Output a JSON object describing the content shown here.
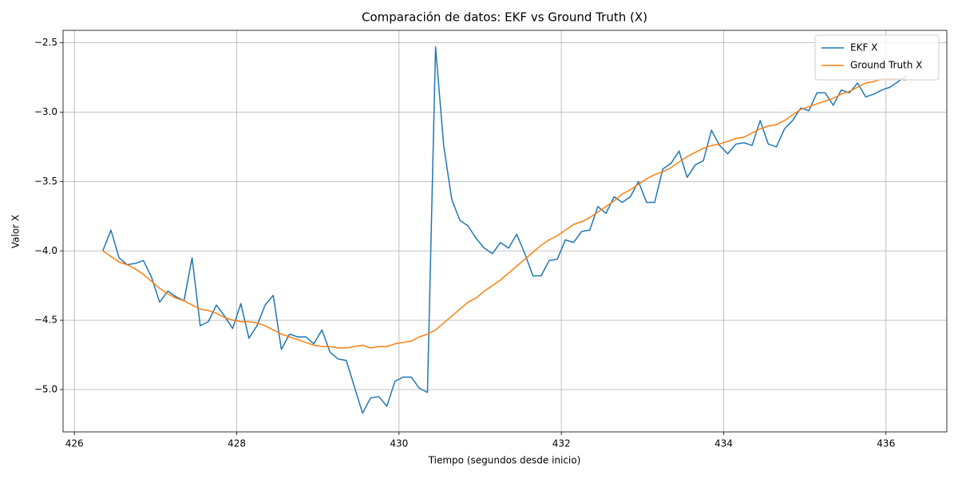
{
  "chart_data": {
    "type": "line",
    "title": "Comparación de datos: EKF vs Ground Truth (X)",
    "x_label": "Tiempo (segundos desde inicio)",
    "y_label": "Valor X",
    "x": [
      426.35,
      426.45,
      426.55,
      426.65,
      426.75,
      426.85,
      426.95,
      427.05,
      427.15,
      427.25,
      427.35,
      427.45,
      427.55,
      427.65,
      427.75,
      427.85,
      427.95,
      428.05,
      428.15,
      428.25,
      428.35,
      428.45,
      428.55,
      428.65,
      428.75,
      428.85,
      428.95,
      429.05,
      429.15,
      429.25,
      429.35,
      429.45,
      429.55,
      429.65,
      429.75,
      429.85,
      429.95,
      430.05,
      430.15,
      430.25,
      430.35,
      430.45,
      430.55,
      430.65,
      430.75,
      430.85,
      430.95,
      431.05,
      431.15,
      431.25,
      431.35,
      431.45,
      431.55,
      431.65,
      431.75,
      431.85,
      431.95,
      432.05,
      432.15,
      432.25,
      432.35,
      432.45,
      432.55,
      432.65,
      432.75,
      432.85,
      432.95,
      433.05,
      433.15,
      433.25,
      433.35,
      433.45,
      433.55,
      433.65,
      433.75,
      433.85,
      433.95,
      434.05,
      434.15,
      434.25,
      434.35,
      434.45,
      434.55,
      434.65,
      434.75,
      434.85,
      434.95,
      435.05,
      435.15,
      435.25,
      435.35,
      435.45,
      435.55,
      435.65,
      435.75,
      435.85,
      435.95,
      436.05,
      436.15,
      436.25
    ],
    "series": [
      {
        "name": "EKF X",
        "color": "#1f77b4",
        "values": [
          -4.0,
          -3.85,
          -4.05,
          -4.1,
          -4.09,
          -4.07,
          -4.19,
          -4.37,
          -4.29,
          -4.33,
          -4.36,
          -4.05,
          -4.54,
          -4.51,
          -4.39,
          -4.47,
          -4.56,
          -4.38,
          -4.63,
          -4.54,
          -4.39,
          -4.32,
          -4.71,
          -4.6,
          -4.62,
          -4.62,
          -4.67,
          -4.57,
          -4.73,
          -4.78,
          -4.79,
          -4.98,
          -5.17,
          -5.06,
          -5.05,
          -5.12,
          -4.94,
          -4.91,
          -4.91,
          -4.99,
          -5.02,
          -2.53,
          -3.24,
          -3.63,
          -3.78,
          -3.82,
          -3.91,
          -3.98,
          -4.02,
          -3.94,
          -3.98,
          -3.88,
          -4.02,
          -4.18,
          -4.18,
          -4.07,
          -4.06,
          -3.92,
          -3.94,
          -3.86,
          -3.85,
          -3.68,
          -3.73,
          -3.61,
          -3.65,
          -3.61,
          -3.5,
          -3.65,
          -3.65,
          -3.41,
          -3.37,
          -3.28,
          -3.47,
          -3.38,
          -3.35,
          -3.13,
          -3.24,
          -3.3,
          -3.23,
          -3.22,
          -3.24,
          -3.06,
          -3.23,
          -3.25,
          -3.12,
          -3.06,
          -2.97,
          -2.99,
          -2.86,
          -2.86,
          -2.95,
          -2.84,
          -2.86,
          -2.79,
          -2.89,
          -2.87,
          -2.84,
          -2.82,
          -2.78,
          -2.74
        ]
      },
      {
        "name": "Ground Truth X",
        "color": "#ff7f0e",
        "values": [
          -4.0,
          -4.04,
          -4.08,
          -4.1,
          -4.13,
          -4.17,
          -4.22,
          -4.27,
          -4.31,
          -4.34,
          -4.36,
          -4.39,
          -4.42,
          -4.43,
          -4.45,
          -4.48,
          -4.5,
          -4.51,
          -4.51,
          -4.52,
          -4.54,
          -4.57,
          -4.6,
          -4.62,
          -4.64,
          -4.66,
          -4.68,
          -4.69,
          -4.69,
          -4.7,
          -4.7,
          -4.69,
          -4.68,
          -4.7,
          -4.69,
          -4.69,
          -4.67,
          -4.66,
          -4.65,
          -4.62,
          -4.6,
          -4.57,
          -4.52,
          -4.47,
          -4.42,
          -4.37,
          -4.34,
          -4.29,
          -4.25,
          -4.21,
          -4.16,
          -4.11,
          -4.06,
          -4.01,
          -3.96,
          -3.92,
          -3.89,
          -3.85,
          -3.81,
          -3.79,
          -3.76,
          -3.72,
          -3.68,
          -3.64,
          -3.59,
          -3.56,
          -3.52,
          -3.48,
          -3.45,
          -3.43,
          -3.4,
          -3.36,
          -3.32,
          -3.29,
          -3.26,
          -3.24,
          -3.23,
          -3.21,
          -3.19,
          -3.18,
          -3.15,
          -3.12,
          -3.1,
          -3.09,
          -3.06,
          -3.02,
          -2.98,
          -2.96,
          -2.94,
          -2.92,
          -2.9,
          -2.87,
          -2.85,
          -2.82,
          -2.79,
          -2.78,
          -2.76,
          -2.76,
          -2.76,
          -2.77
        ]
      }
    ],
    "xlim": [
      425.86,
      436.75
    ],
    "ylim": [
      -5.305,
      -2.41
    ],
    "xticks": [
      426,
      428,
      430,
      432,
      434,
      436
    ],
    "yticks": [
      {
        "value": -2.5,
        "label": "−2.5"
      },
      {
        "value": -3.0,
        "label": "−3.0"
      },
      {
        "value": -3.5,
        "label": "−3.5"
      },
      {
        "value": -4.0,
        "label": "−4.0"
      },
      {
        "value": -4.5,
        "label": "−4.5"
      },
      {
        "value": -5.0,
        "label": "−5.0"
      }
    ],
    "grid": true,
    "legend": "upper right"
  }
}
